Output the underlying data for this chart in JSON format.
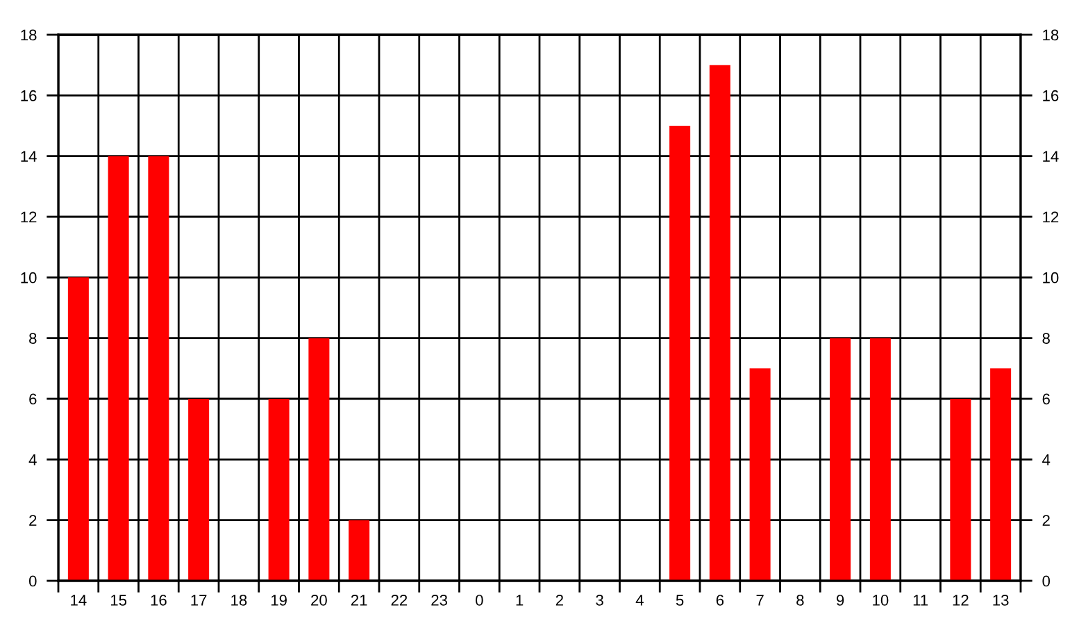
{
  "chart_data": {
    "type": "bar",
    "categories": [
      "14",
      "15",
      "16",
      "17",
      "18",
      "19",
      "20",
      "21",
      "22",
      "23",
      "0",
      "1",
      "2",
      "3",
      "4",
      "5",
      "6",
      "7",
      "8",
      "9",
      "10",
      "11",
      "12",
      "13"
    ],
    "values": [
      10,
      14,
      14,
      6,
      0,
      6,
      8,
      2,
      0,
      0,
      0,
      0,
      0,
      0,
      0,
      15,
      17,
      7,
      0,
      8,
      8,
      0,
      6,
      7
    ],
    "color": "#ff0000",
    "ylim": [
      0,
      18
    ],
    "yticks": [
      0,
      2,
      4,
      6,
      8,
      10,
      12,
      14,
      16,
      18
    ],
    "y2lim": [
      0,
      18
    ],
    "y2ticks": [
      0,
      2,
      4,
      6,
      8,
      10,
      12,
      14,
      16,
      18
    ],
    "grid": true
  }
}
